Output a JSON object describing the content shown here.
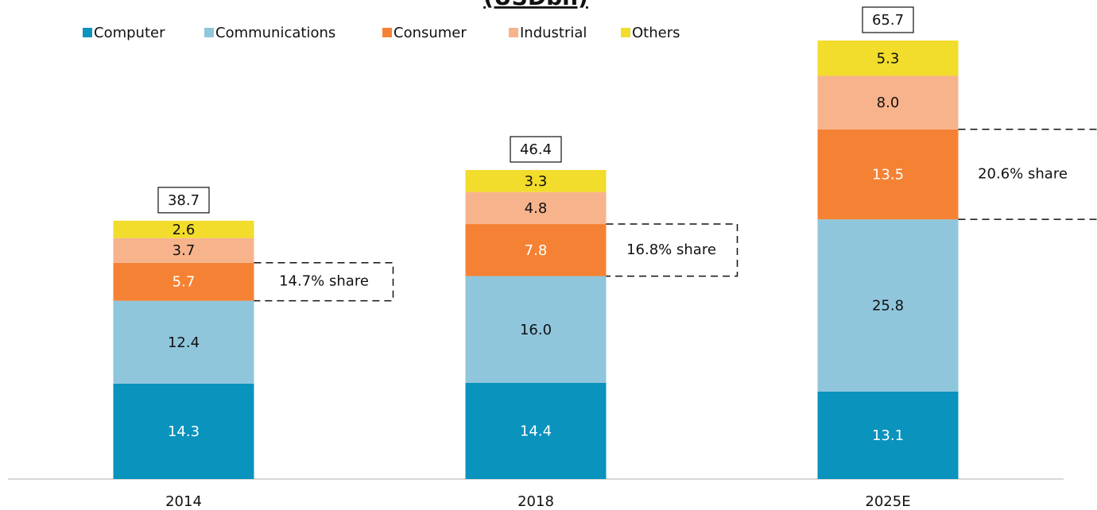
{
  "chart_data": {
    "type": "stacked_bar",
    "title": "(USDbn)",
    "categories": [
      "2014",
      "2018",
      "2025E"
    ],
    "series": [
      {
        "name": "Computer",
        "color": "#0a93bd",
        "values": [
          14.3,
          14.4,
          13.1
        ],
        "value_labels": [
          "14.3",
          "14.4",
          "13.1"
        ]
      },
      {
        "name": "Communications",
        "color": "#8fc6dc",
        "values": [
          12.4,
          16.0,
          25.8
        ],
        "value_labels": [
          "12.4",
          "16.0",
          "25.8"
        ]
      },
      {
        "name": "Consumer",
        "color": "#f58234",
        "values": [
          5.7,
          7.8,
          13.5
        ],
        "value_labels": [
          "5.7",
          "7.8",
          "13.5"
        ]
      },
      {
        "name": "Industrial",
        "color": "#f7b38c",
        "values": [
          3.7,
          4.8,
          8.0
        ],
        "value_labels": [
          "3.7",
          "4.8",
          "8.0"
        ]
      },
      {
        "name": "Others",
        "color": "#f2dc2c",
        "values": [
          2.6,
          3.3,
          5.3
        ],
        "value_labels": [
          "2.6",
          "3.3",
          "5.3"
        ]
      }
    ],
    "totals": [
      38.7,
      46.4,
      65.7
    ],
    "annotations": [
      "14.7% share",
      "16.8% share",
      "20.6% share"
    ]
  }
}
